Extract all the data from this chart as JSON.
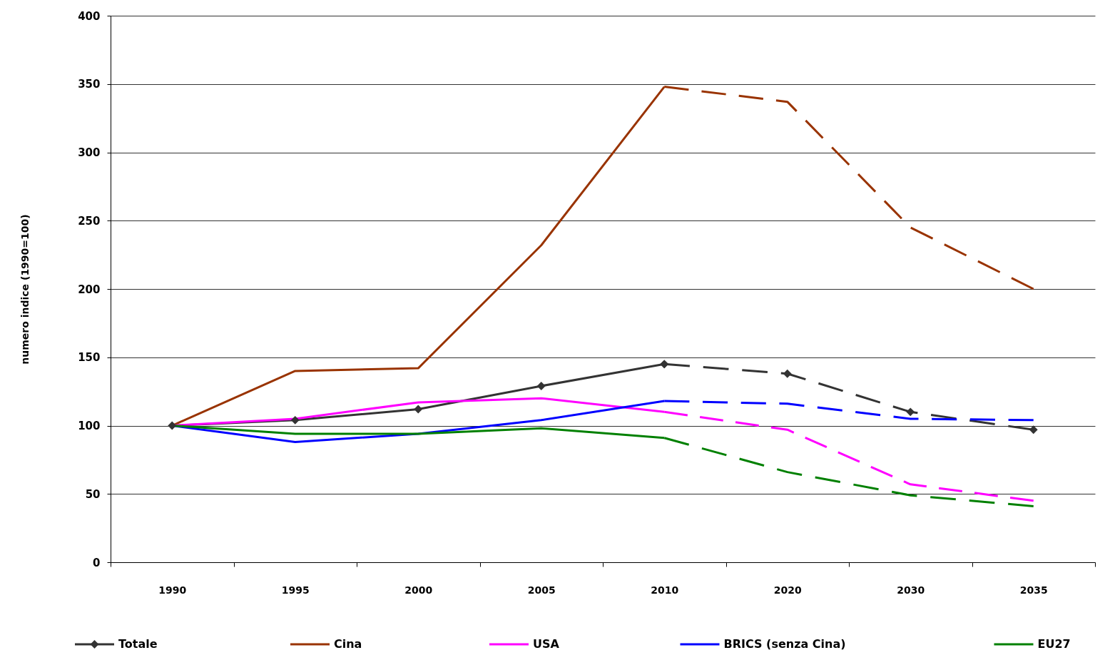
{
  "chart_data": {
    "type": "line",
    "ylabel": "numero indice (1990=100)",
    "categories": [
      "1990",
      "1995",
      "2000",
      "2005",
      "2010",
      "2020",
      "2030",
      "2035"
    ],
    "ylim": [
      0,
      400
    ],
    "yticks": [
      0,
      50,
      100,
      150,
      200,
      250,
      300,
      350,
      400
    ],
    "grid": "y",
    "legend": "bottom",
    "line_style": "solid",
    "series": [
      {
        "name": "Totale",
        "color": "#333333",
        "marker": "diamond",
        "values": [
          100,
          104,
          112,
          129,
          145,
          null,
          null,
          null
        ]
      },
      {
        "name": "Cina",
        "color": "#993300",
        "values": [
          100,
          140,
          142,
          232,
          348,
          null,
          null,
          null
        ]
      },
      {
        "name": "USA",
        "color": "#ff00ff",
        "values": [
          100,
          105,
          117,
          120,
          110,
          null,
          null,
          null
        ]
      },
      {
        "name": "BRICS (senza Cina)",
        "color": "#0000ff",
        "values": [
          100,
          88,
          94,
          104,
          118,
          null,
          null,
          null
        ]
      },
      {
        "name": "EU27",
        "color": "#008000",
        "values": [
          100,
          94,
          94,
          98,
          91,
          null,
          null,
          null
        ]
      },
      {
        "color": "#333333",
        "marker": "diamond",
        "line_style": "dashed",
        "values": [
          null,
          null,
          null,
          null,
          145,
          138,
          110,
          97
        ]
      },
      {
        "color": "#993300",
        "line_style": "dashed",
        "values": [
          null,
          null,
          null,
          null,
          348,
          337,
          245,
          200
        ]
      },
      {
        "color": "#ff00ff",
        "line_style": "dashed",
        "values": [
          null,
          null,
          null,
          null,
          110,
          97,
          57,
          45
        ]
      },
      {
        "color": "#0000ff",
        "line_style": "dashed",
        "values": [
          null,
          null,
          null,
          null,
          118,
          116,
          105,
          104
        ]
      },
      {
        "color": "#008000",
        "line_style": "dashed",
        "values": [
          null,
          null,
          null,
          null,
          91,
          66,
          49,
          41
        ]
      }
    ]
  }
}
